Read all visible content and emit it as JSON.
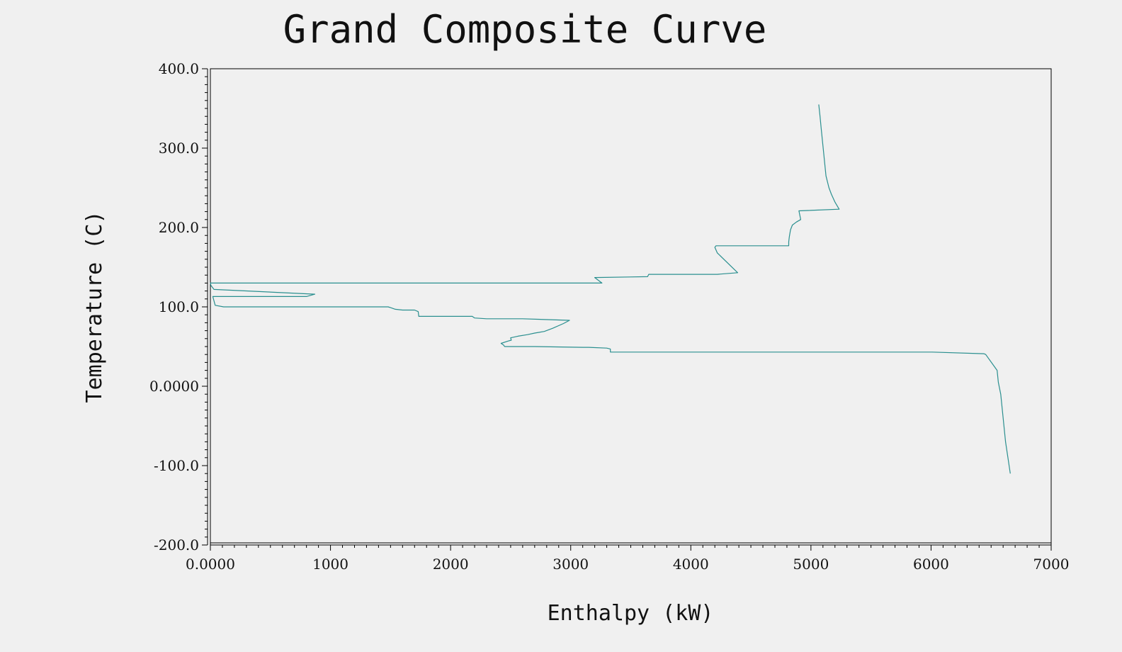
{
  "chart_data": {
    "type": "line",
    "title": "Grand Composite Curve",
    "xlabel": "Enthalpy (kW)",
    "ylabel": "Temperature (C)",
    "xlim": [
      0,
      7000
    ],
    "ylim": [
      -200,
      400
    ],
    "x_ticks": [
      0,
      1000,
      2000,
      3000,
      4000,
      5000,
      6000,
      7000
    ],
    "x_tick_labels": [
      "0.0000",
      "1000",
      "2000",
      "3000",
      "4000",
      "5000",
      "6000",
      "7000"
    ],
    "y_ticks": [
      400,
      300,
      200,
      100,
      0,
      -100,
      -200
    ],
    "y_tick_labels": [
      "400.0",
      "300.0",
      "200.0",
      "100.0",
      "0.0000",
      "-100.0",
      "-200.0"
    ],
    "grid": false,
    "legend": "none",
    "line_color": "#2a8f8f",
    "series": [
      {
        "x": [
          5065,
          5076,
          5085,
          5095,
          5105,
          5115,
          5125,
          5150,
          5170,
          5200,
          5235,
          4900,
          4915,
          4880,
          4845,
          4830,
          4820,
          4815,
          4815,
          4210,
          4200,
          4220,
          4390,
          4220,
          3650,
          3640,
          3200,
          3260,
          0,
          5,
          30,
          870,
          800,
          20,
          40,
          110,
          1480,
          1500,
          1540,
          1600,
          1700,
          1730,
          1735,
          1760,
          2180,
          2200,
          2300,
          2600,
          2990,
          2940,
          2850,
          2780,
          2700,
          2640,
          2560,
          2500,
          2505,
          2480,
          2420,
          2440,
          2450,
          2700,
          3100,
          3150,
          3300,
          3330,
          3330,
          3800,
          4500,
          5000,
          5500,
          6000,
          6010,
          6440,
          6455,
          6550,
          6560,
          6580,
          6620,
          6660
        ],
        "y": [
          355,
          340,
          325,
          310,
          295,
          280,
          265,
          250,
          242,
          232,
          223,
          221,
          210,
          207,
          203,
          197,
          188,
          182,
          177,
          177,
          175,
          168,
          143,
          141,
          141,
          138,
          137,
          130,
          130,
          127,
          122,
          116,
          113,
          113,
          102,
          100,
          100,
          99,
          97,
          96,
          96,
          94,
          88,
          88,
          88,
          86,
          85,
          85,
          83,
          79,
          73,
          69,
          67,
          65,
          63,
          61,
          58,
          57,
          54,
          52,
          50,
          50,
          49,
          49,
          48,
          47,
          43,
          43,
          43,
          43,
          43,
          43,
          43,
          41,
          40,
          20,
          5,
          -10,
          -70,
          -110
        ]
      }
    ]
  }
}
